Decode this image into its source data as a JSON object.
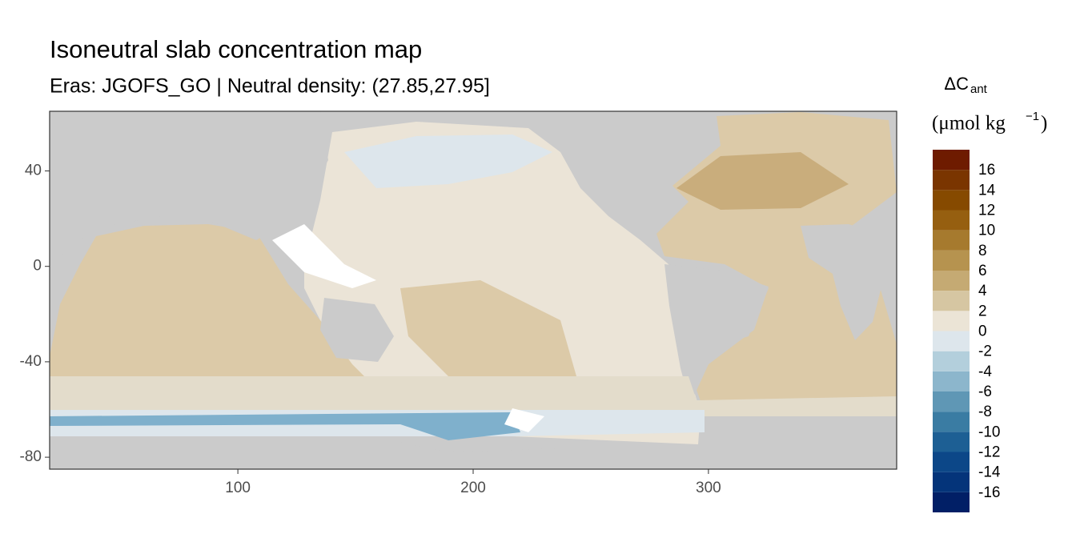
{
  "chart_data": {
    "type": "map",
    "title": "Isoneutral slab concentration map",
    "subtitle": "Eras: JGOFS_GO | Neutral density: (27.85,27.95]",
    "xlim": [
      20,
      380
    ],
    "ylim": [
      -85,
      65
    ],
    "xticks": [
      100,
      200,
      300
    ],
    "yticks": [
      -80,
      -40,
      0,
      40
    ],
    "legend": {
      "title": {
        "symbol": "ΔC",
        "subscript": "ant"
      },
      "units": {
        "text": "(μmol kg",
        "superscript": "−1",
        "close": ")"
      },
      "bins": [
        -18,
        -16,
        -14,
        -12,
        -10,
        -8,
        -6,
        -4,
        -2,
        0,
        2,
        4,
        6,
        8,
        10,
        12,
        14,
        16,
        18
      ],
      "colors": [
        "#011f66",
        "#04347a",
        "#0c4788",
        "#1d5f94",
        "#3a7ca3",
        "#5f97b5",
        "#8cb6cc",
        "#b3cfdc",
        "#dde6ec",
        "#ebe4d6",
        "#d6c6a2",
        "#c5aa73",
        "#b6934f",
        "#a67a2e",
        "#965f10",
        "#864a00",
        "#7a3500",
        "#6e1b00"
      ],
      "ticks": [
        -16,
        -14,
        -12,
        -10,
        -8,
        -6,
        -4,
        -2,
        0,
        2,
        4,
        6,
        8,
        10,
        12,
        14,
        16
      ]
    }
  }
}
